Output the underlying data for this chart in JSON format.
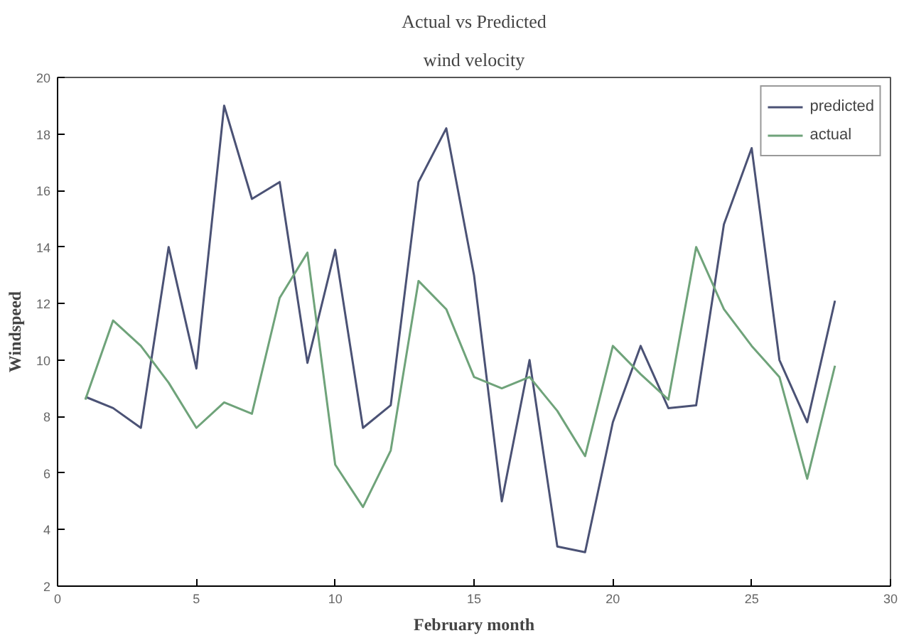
{
  "chart_data": {
    "type": "line",
    "title": "Actual vs Predicted",
    "subtitle": "wind velocity",
    "xlabel": "February month",
    "ylabel": "Windspeed",
    "x": [
      1,
      2,
      3,
      4,
      5,
      6,
      7,
      8,
      9,
      10,
      11,
      12,
      13,
      14,
      15,
      16,
      17,
      18,
      19,
      20,
      21,
      22,
      23,
      24,
      25,
      26,
      27,
      28
    ],
    "series": [
      {
        "name": "predicted",
        "color": "#4b5275",
        "values": [
          8.7,
          8.3,
          7.6,
          14.0,
          9.7,
          19.0,
          15.7,
          16.3,
          9.9,
          13.9,
          7.6,
          8.4,
          16.3,
          18.2,
          13.0,
          5.0,
          10.0,
          3.4,
          3.2,
          7.8,
          10.5,
          8.3,
          8.4,
          14.8,
          17.5,
          10.0,
          7.8,
          12.1
        ]
      },
      {
        "name": "actual",
        "color": "#6fa37a",
        "values": [
          8.6,
          11.4,
          10.5,
          9.2,
          7.6,
          8.5,
          8.1,
          12.2,
          13.8,
          6.3,
          4.8,
          6.8,
          12.8,
          11.8,
          9.4,
          9.0,
          9.4,
          8.2,
          6.6,
          10.5,
          9.5,
          8.6,
          14.0,
          11.8,
          10.5,
          9.4,
          5.8,
          9.8
        ]
      }
    ],
    "xlim": [
      0,
      30
    ],
    "xticks": [
      0,
      5,
      10,
      15,
      20,
      25,
      30
    ],
    "ylim": [
      2,
      20
    ],
    "yticks": [
      2,
      4,
      6,
      8,
      10,
      12,
      14,
      16,
      18,
      20
    ],
    "grid": false,
    "legend": "top right",
    "marker": "none",
    "line_style": "solid"
  }
}
